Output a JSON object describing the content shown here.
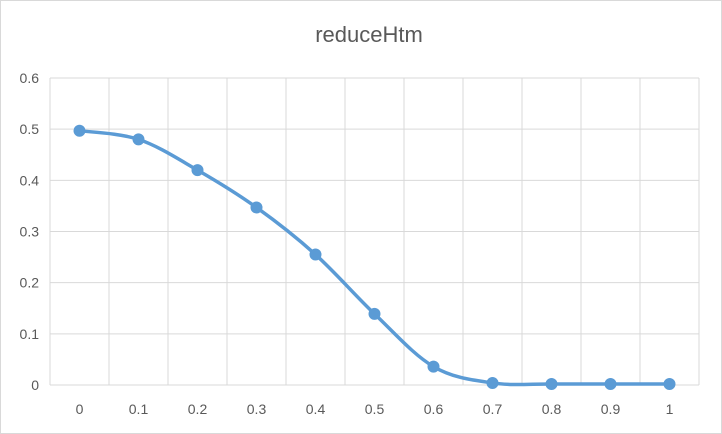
{
  "chart_data": {
    "type": "line",
    "title": "reduceHtm",
    "x": [
      0,
      0.1,
      0.2,
      0.3,
      0.4,
      0.5,
      0.6,
      0.7,
      0.8,
      0.9,
      1
    ],
    "series": [
      {
        "values": [
          0.497,
          0.48,
          0.42,
          0.347,
          0.255,
          0.139,
          0.036,
          0.004,
          0.002,
          0.002,
          0.002
        ],
        "color": "#5b9bd5"
      }
    ],
    "xlim": [
      0,
      1
    ],
    "ylim": [
      0,
      0.6
    ],
    "x_ticks": [
      "0",
      "0.1",
      "0.2",
      "0.3",
      "0.4",
      "0.5",
      "0.6",
      "0.7",
      "0.8",
      "0.9",
      "1"
    ],
    "y_ticks": [
      "0",
      "0.1",
      "0.2",
      "0.3",
      "0.4",
      "0.5",
      "0.6"
    ],
    "grid": true,
    "smooth": true,
    "markers": true,
    "gridline_color": "#d9d9d9"
  }
}
